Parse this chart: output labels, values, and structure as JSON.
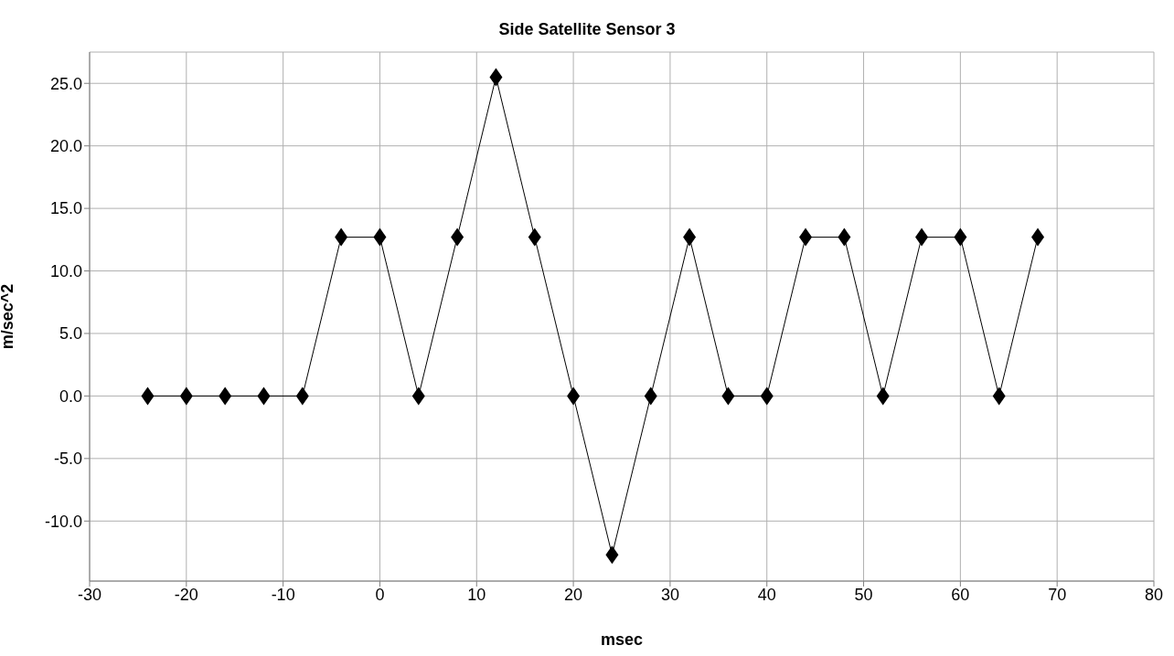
{
  "chart_data": {
    "type": "line",
    "title": "Side Satellite Sensor 3",
    "xlabel": "msec",
    "ylabel": "m/sec^2",
    "x": [
      -24,
      -20,
      -16,
      -12,
      -8,
      -4,
      0,
      4,
      8,
      12,
      16,
      20,
      24,
      28,
      32,
      36,
      40,
      44,
      48,
      52,
      56,
      60,
      64,
      68
    ],
    "series": [
      {
        "color": "#000000",
        "values": [
          0,
          0,
          0,
          0,
          0,
          12.7,
          12.7,
          0,
          12.7,
          25.5,
          12.7,
          0,
          -12.7,
          0,
          12.7,
          0,
          0,
          12.7,
          12.7,
          0,
          12.7,
          12.7,
          0,
          12.7
        ]
      }
    ],
    "xlim": [
      -30,
      80
    ],
    "xticks": [
      -30,
      -20,
      -10,
      0,
      10,
      20,
      30,
      40,
      50,
      60,
      70,
      80
    ],
    "ylim": [
      -14.8,
      27.5
    ],
    "yticks": [
      {
        "value": -10,
        "label": "-10.0"
      },
      {
        "value": -5,
        "label": "-5.0"
      },
      {
        "value": 0,
        "label": "0.0"
      },
      {
        "value": 5,
        "label": "5.0"
      },
      {
        "value": 10,
        "label": "10.0"
      },
      {
        "value": 15,
        "label": "15.0"
      },
      {
        "value": 20,
        "label": "20.0"
      },
      {
        "value": 25,
        "label": "25.0"
      }
    ],
    "grid": true,
    "marker": "diamond",
    "line_style": "solid",
    "legend": false
  }
}
